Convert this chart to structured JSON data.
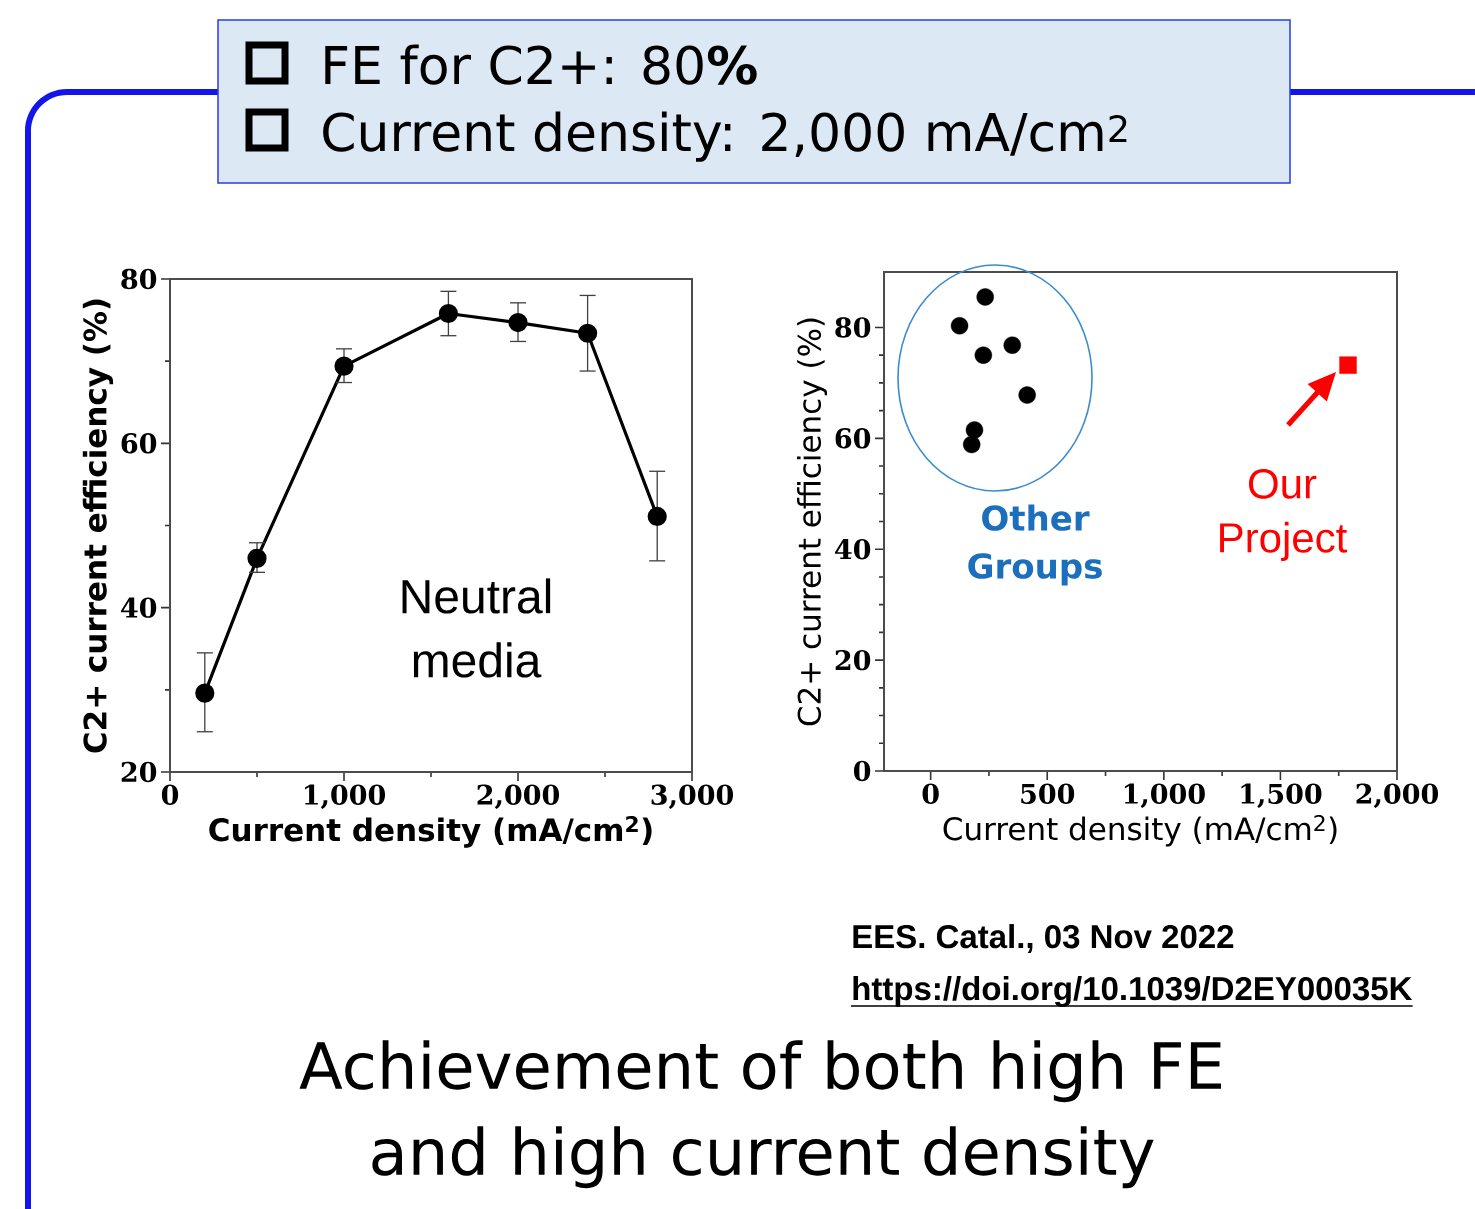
{
  "chart_data": [
    {
      "type": "other",
      "annotations": [
        "FE for C2+: 80**%**",
        "Current density: 2,000 mA/cm$^{2}$"
      ]
    },
    {
      "type": "line",
      "xlabel": "Current density (mA/cm$^{2}$)",
      "ylabel": "C2+ current efficiency (%)",
      "x": [
        200,
        500,
        1000,
        1600,
        2000,
        2400,
        2800
      ],
      "values": [
        29.6,
        46,
        69.4,
        75.8,
        74.7,
        73.4,
        51.1
      ],
      "color": "#000000",
      "errors": [
        [
          24.9,
          34.5
        ],
        [
          44.3,
          47.9
        ],
        [
          67.4,
          71.5
        ],
        [
          73.1,
          78.5
        ],
        [
          72.4,
          77.1
        ],
        [
          68.8,
          78.0
        ],
        [
          45.7,
          56.6
        ]
      ],
      "marker": "circle",
      "xlim": [
        0,
        3000
      ],
      "ylim": [
        20,
        80
      ],
      "xticks": [
        0,
        {
          "value": 1000,
          "label": "1,000"
        },
        {
          "value": 2000,
          "label": "2,000"
        },
        {
          "value": 3000,
          "label": "3,000"
        }
      ],
      "yticks": [
        20,
        40,
        60,
        80
      ],
      "annotations": [
        "Neutral media"
      ]
    },
    {
      "type": "scatter",
      "xlabel": "Current density (mA/cm$^{2}$)",
      "ylabel": "C2+ current efficiency (%)",
      "series": [
        {
          "name": "Other Groups",
          "color": "#000000",
          "marker": "circle",
          "x": [
            124,
            234,
            226,
            350,
            414,
            188,
            176
          ],
          "values": [
            80.3,
            85.5,
            75,
            76.8,
            67.8,
            61.5,
            58.9
          ]
        },
        {
          "name": "Our Project",
          "color": "#ff0000",
          "marker": "square",
          "x": [
            1790
          ],
          "values": [
            73.2
          ]
        }
      ],
      "xlim": [
        -200,
        2000
      ],
      "ylim": [
        0,
        90
      ],
      "xticks": [
        0,
        500,
        {
          "value": 1000,
          "label": "1,000"
        },
        {
          "value": 1500,
          "label": "1,500"
        },
        {
          "value": 2000,
          "label": "2,000"
        }
      ],
      "yticks": [
        0,
        20,
        40,
        60,
        80
      ],
      "annotations": [
        "EES. Catal., 03 Nov 2022",
        "https://doi.org/10.1039/D2EY00035K"
      ]
    },
    {
      "type": "other",
      "annotations": [
        "Achievement of both high FE and high current density"
      ]
    }
  ]
}
